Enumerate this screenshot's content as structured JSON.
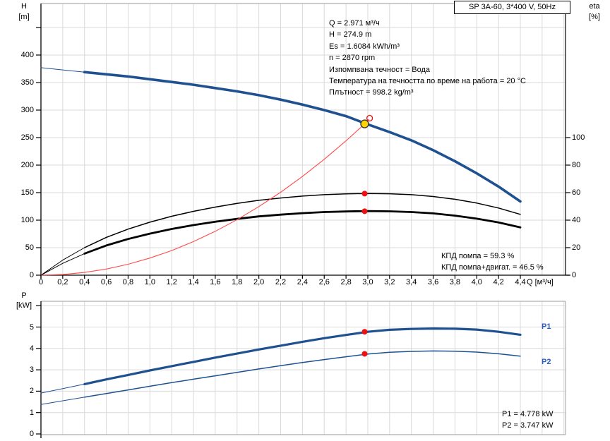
{
  "chart_data": [
    {
      "type": "line",
      "title": "SP 3A-60, 3*400 V, 50Hz",
      "xlabel": "Q [м³/ч]",
      "x_range": [
        0,
        4.4
      ],
      "x_grid_max": 4.8,
      "x_tick_labels": [
        "0",
        "0,2",
        "0,4",
        "0,6",
        "0,8",
        "1,0",
        "1,2",
        "1,4",
        "1,6",
        "1,8",
        "2,0",
        "2,2",
        "2,4",
        "2,6",
        "2,8",
        "3,0",
        "3,2",
        "3,4",
        "3,6",
        "3,8",
        "4,0",
        "4,2",
        "4,4"
      ],
      "y_left": {
        "label_lines": [
          "H",
          "[m]"
        ],
        "range": [
          0,
          450
        ],
        "tick_labels": [
          "0",
          "50",
          "100",
          "150",
          "200",
          "250",
          "300",
          "350",
          "400"
        ],
        "unlabeled_tick": 450,
        "grid_step": 50
      },
      "y_right": {
        "label_lines": [
          "eta",
          "[%]"
        ],
        "range": [
          0,
          100
        ],
        "tick_labels": [
          "0",
          "20",
          "40",
          "60",
          "80",
          "100"
        ]
      },
      "x": [
        0,
        0.2,
        0.4,
        0.6,
        0.8,
        1,
        1.2,
        1.4,
        1.6,
        1.8,
        2,
        2.2,
        2.4,
        2.6,
        2.8,
        3,
        3.2,
        3.4,
        3.6,
        3.8,
        4,
        4.2,
        4.4
      ],
      "series": [
        {
          "name": "pump-curve-QH",
          "axis": "left",
          "color": "#1f5191",
          "width": 3.6,
          "thin_until": 0.4,
          "y": [
            377,
            373,
            369,
            365,
            361,
            356,
            351,
            346,
            340,
            334,
            327,
            319,
            310,
            300,
            289,
            274,
            260,
            245,
            227,
            207,
            185,
            161,
            134
          ]
        },
        {
          "name": "efficiency-pump",
          "axis": "right",
          "color": "#000000",
          "width": 1.5,
          "thin_until": 0.4,
          "y": [
            0,
            11,
            20,
            27.5,
            33.5,
            38.5,
            42.8,
            46.4,
            49.5,
            52.2,
            54.4,
            56.1,
            57.5,
            58.5,
            59.1,
            59.4,
            59.2,
            58.5,
            57.2,
            55.2,
            52.4,
            48.8,
            44.2
          ]
        },
        {
          "name": "efficiency-pump-motor",
          "axis": "right",
          "color": "#000000",
          "width": 2.8,
          "thin_until": 0.4,
          "y": [
            0,
            8.6,
            15.7,
            21.6,
            26.3,
            30.2,
            33.6,
            36.4,
            38.8,
            40.9,
            42.7,
            44,
            45.1,
            45.9,
            46.3,
            46.6,
            46.4,
            45.9,
            44.9,
            43.3,
            41.1,
            38.3,
            34.7
          ]
        },
        {
          "name": "system-curve",
          "axis": "left",
          "color": "#ff4a4a",
          "width": 1.1,
          "x": [
            0,
            0.2,
            0.4,
            0.6,
            0.8,
            1,
            1.2,
            1.4,
            1.6,
            1.8,
            2,
            2.2,
            2.4,
            2.6,
            2.8,
            2.971,
            3.01
          ],
          "y": [
            0,
            1.2,
            5,
            11.2,
            19.9,
            31.1,
            44.8,
            61,
            79.7,
            100.9,
            124.6,
            150.7,
            179.4,
            210.5,
            244.1,
            274.9,
            283
          ]
        }
      ],
      "markers": [
        {
          "name": "requested-duty-point",
          "axis": "left",
          "x": 3.017,
          "y": 285.3,
          "style": "open-red"
        },
        {
          "name": "duty-point",
          "axis": "left",
          "x": 2.971,
          "y": 274.9,
          "style": "yellow"
        },
        {
          "name": "efficiency-pump-duty",
          "axis": "right",
          "x": 2.971,
          "y": 59.3,
          "style": "red"
        },
        {
          "name": "efficiency-total-duty",
          "axis": "right",
          "x": 2.971,
          "y": 46.5,
          "style": "red"
        }
      ],
      "annotations": {
        "info_lines": [
          "Q = 2.971 м³/ч",
          "H = 274.9 m",
          "Es = 1.6084 kWh/m³",
          "n = 2870 rpm",
          "Изпомпвана течност = Вода",
          "Температура на течността по време на работа = 20 °C",
          "Плътност = 998.2 kg/m³"
        ],
        "efficiency_lines": [
          "КПД помпа = 59.3 %",
          "КПД помпа+двигат. = 46.5 %"
        ]
      }
    },
    {
      "type": "line",
      "x_range": [
        0,
        4.4
      ],
      "x_grid_max": 4.8,
      "y_left": {
        "label_lines": [
          "P",
          "[kW]"
        ],
        "range": [
          0,
          6
        ],
        "tick_labels": [
          "0",
          "1",
          "2",
          "3",
          "4",
          "5"
        ],
        "unlabeled_tick": 6,
        "grid_step": 1
      },
      "x": [
        0,
        0.2,
        0.4,
        0.6,
        0.8,
        1,
        1.2,
        1.4,
        1.6,
        1.8,
        2,
        2.2,
        2.4,
        2.6,
        2.8,
        3,
        3.2,
        3.4,
        3.6,
        3.8,
        4,
        4.2,
        4.4
      ],
      "series": [
        {
          "name": "power-P1",
          "axis": "left",
          "color": "#1f5191",
          "width": 3.2,
          "thin_until": 0.4,
          "label": "P1",
          "y": [
            1.91,
            2.12,
            2.33,
            2.55,
            2.76,
            2.97,
            3.17,
            3.37,
            3.57,
            3.76,
            3.95,
            4.13,
            4.31,
            4.48,
            4.63,
            4.78,
            4.87,
            4.91,
            4.93,
            4.92,
            4.88,
            4.78,
            4.64
          ]
        },
        {
          "name": "power-P2",
          "axis": "left",
          "color": "#1f5191",
          "width": 1.5,
          "thin_until": 0.4,
          "label": "P2",
          "y": [
            1.38,
            1.55,
            1.72,
            1.89,
            2.06,
            2.23,
            2.4,
            2.56,
            2.72,
            2.88,
            3.04,
            3.19,
            3.34,
            3.48,
            3.61,
            3.74,
            3.82,
            3.86,
            3.88,
            3.87,
            3.83,
            3.75,
            3.64
          ]
        }
      ],
      "markers": [
        {
          "name": "p1-duty",
          "axis": "left",
          "x": 2.971,
          "y": 4.778,
          "style": "red"
        },
        {
          "name": "p2-duty",
          "axis": "left",
          "x": 2.971,
          "y": 3.747,
          "style": "red"
        }
      ],
      "annotations": {
        "series_labels": [
          "P1",
          "P2"
        ],
        "power_lines": [
          "P1 = 4.778 kW",
          "P2 = 3.747 kW"
        ]
      }
    }
  ],
  "colors": {
    "curve_blue": "#1f5191",
    "series_label_blue": "#2a5bbf",
    "system_curve_red": "#ff4a4a",
    "marker_red": "#ee1111",
    "duty_yellow": "#ffd400",
    "grid": "#d9d9d9",
    "border_grey": "#aeaeae",
    "axis": "#2f2f2f"
  }
}
